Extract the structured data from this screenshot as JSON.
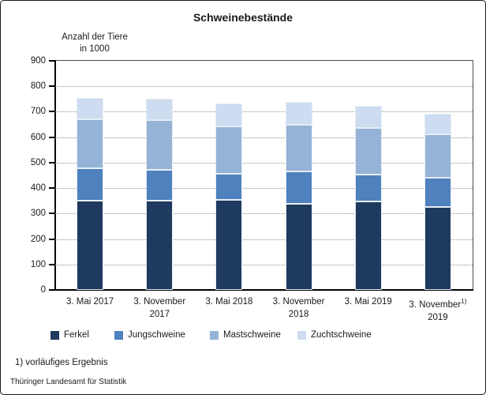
{
  "title": "Schweinebestände",
  "y_axis_title_line1": "Anzahl der Tiere",
  "y_axis_title_line2": "in 1000",
  "footnote": "1) vorläufiges Ergebnis",
  "source": "Thüringer Landesamt für Statistik",
  "chart_data": {
    "type": "bar",
    "stacked": true,
    "title": "Schweinebestände",
    "ylabel": "Anzahl der Tiere in 1000",
    "ylim": [
      0,
      900
    ],
    "ytick_step": 100,
    "grid": "horizontal-dotted",
    "legend_position": "bottom",
    "categories": [
      {
        "l1": "3. Mai 2017",
        "l2": "",
        "sup": ""
      },
      {
        "l1": "3. November",
        "l2": "2017",
        "sup": ""
      },
      {
        "l1": "3. Mai 2018",
        "l2": "",
        "sup": ""
      },
      {
        "l1": "3. November",
        "l2": "2018",
        "sup": ""
      },
      {
        "l1": "3. Mai 2019",
        "l2": "",
        "sup": ""
      },
      {
        "l1": "3. November",
        "l2": "2019",
        "sup": "1)"
      }
    ],
    "series": [
      {
        "name": "Ferkel",
        "color": "#1f3a5f",
        "values": [
          350,
          350,
          353,
          337,
          347,
          325
        ]
      },
      {
        "name": "Jungschweine",
        "color": "#4e81bd",
        "values": [
          128,
          122,
          102,
          128,
          105,
          116
        ]
      },
      {
        "name": "Mastschweine",
        "color": "#95b3d7",
        "values": [
          191,
          196,
          186,
          185,
          183,
          170
        ]
      },
      {
        "name": "Zuchtschweine",
        "color": "#cddcf0",
        "values": [
          86,
          84,
          90,
          89,
          87,
          81
        ]
      }
    ],
    "totals": [
      755,
      752,
      731,
      739,
      722,
      692
    ]
  }
}
